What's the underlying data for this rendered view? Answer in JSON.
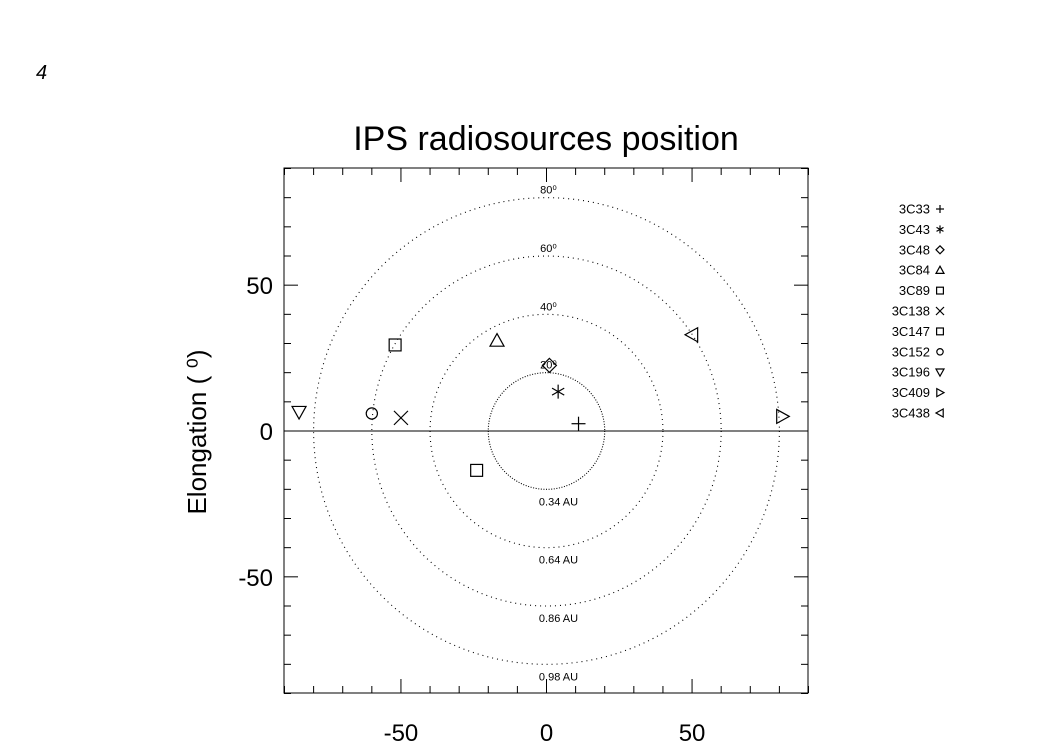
{
  "page_mark": "4",
  "chart_data": {
    "type": "scatter",
    "title": "IPS radiosources position",
    "ylabel": "Elongation ( ⁰)",
    "xlabel": "",
    "xlim": [
      -90,
      90
    ],
    "ylim": [
      -90,
      90
    ],
    "x_ticks": [
      -50,
      0,
      50
    ],
    "y_ticks": [
      -50,
      0,
      50
    ],
    "x_tick_labels": [
      "-50",
      "0",
      "50"
    ],
    "y_tick_labels": [
      "-50",
      "0",
      "50"
    ],
    "grid": false,
    "legend_placement": "right",
    "circles": [
      {
        "radius": 20,
        "style": "solid",
        "elongation_label": "20⁰",
        "distance_label": "0.34 AU"
      },
      {
        "radius": 40,
        "style": "dotted",
        "elongation_label": "40⁰",
        "distance_label": "0.64 AU"
      },
      {
        "radius": 60,
        "style": "dotted",
        "elongation_label": "60⁰",
        "distance_label": "0.86 AU"
      },
      {
        "radius": 80,
        "style": "dotted",
        "elongation_label": "80⁰",
        "distance_label": "0.98 AU"
      }
    ],
    "series": [
      {
        "name": "3C33",
        "symbol": "plus",
        "x": 11,
        "y": 2.5
      },
      {
        "name": "3C43",
        "symbol": "asterisk",
        "x": 4,
        "y": 13.5
      },
      {
        "name": "3C48",
        "symbol": "diamond",
        "x": 1,
        "y": 22.5
      },
      {
        "name": "3C84",
        "symbol": "triangle-up",
        "x": -17,
        "y": 31
      },
      {
        "name": "3C89",
        "symbol": "square",
        "x": -52,
        "y": 29.5
      },
      {
        "name": "3C138",
        "symbol": "cross",
        "x": -50,
        "y": 4.5
      },
      {
        "name": "3C147",
        "symbol": "square",
        "x": -24,
        "y": -13.5
      },
      {
        "name": "3C152",
        "symbol": "circle",
        "x": -60,
        "y": 6
      },
      {
        "name": "3C196",
        "symbol": "triangle-down",
        "x": -85,
        "y": 6.5
      },
      {
        "name": "3C409",
        "symbol": "triangle-right",
        "x": 81,
        "y": 5
      },
      {
        "name": "3C438",
        "symbol": "triangle-left",
        "x": 50,
        "y": 33
      }
    ]
  }
}
